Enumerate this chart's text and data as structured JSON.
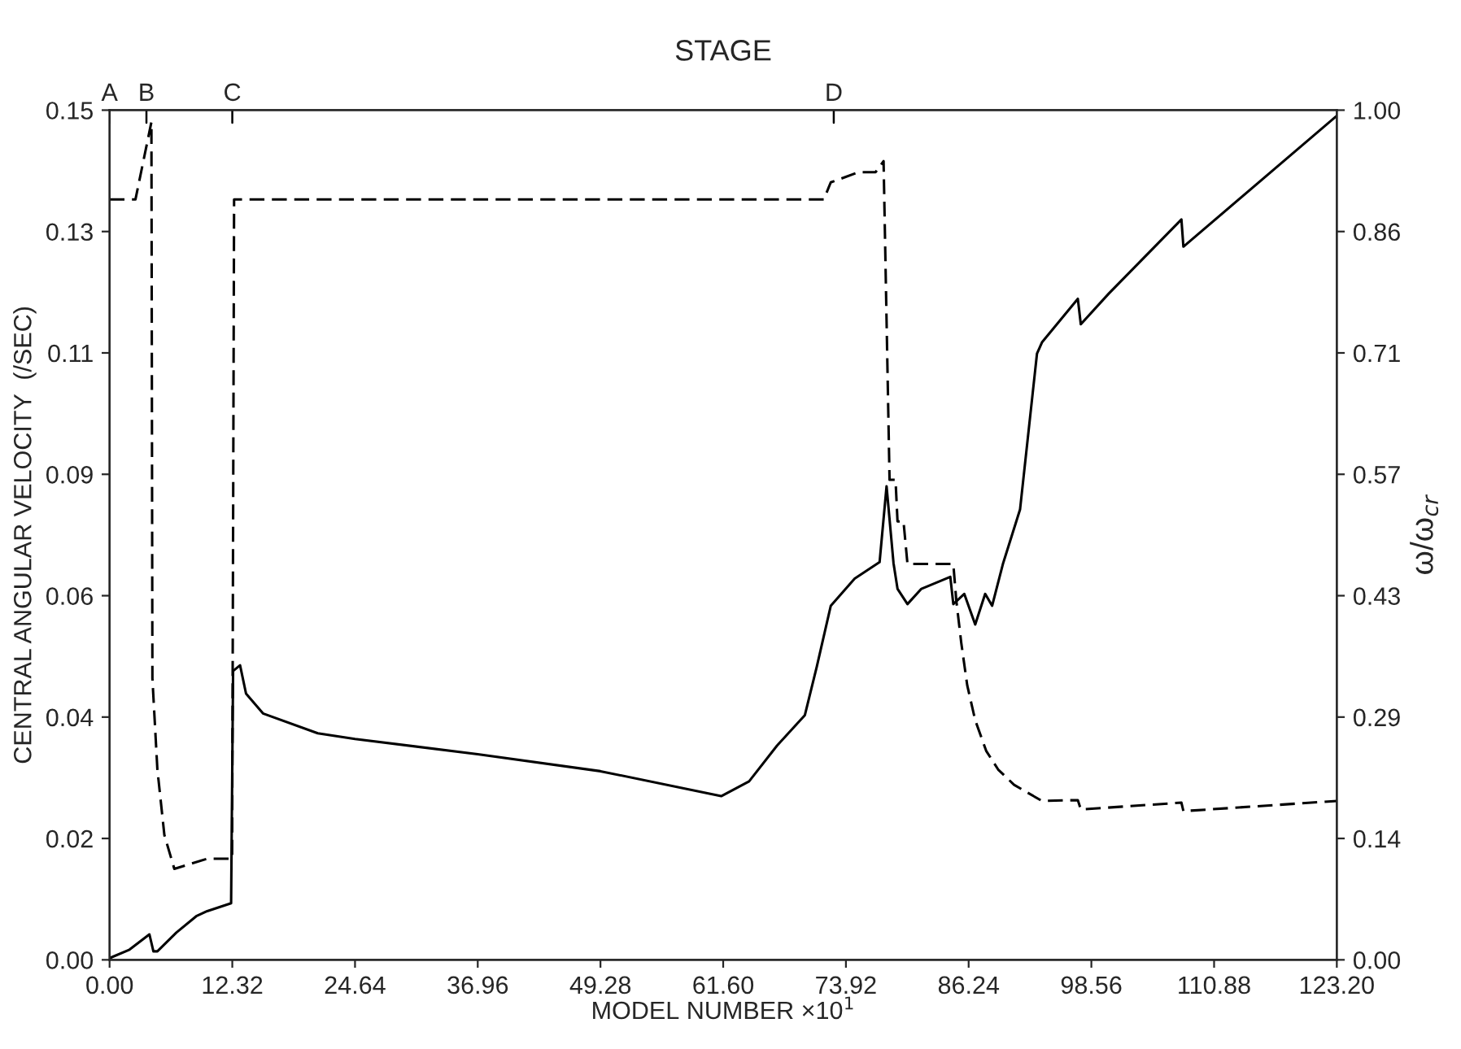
{
  "chart_data": {
    "type": "line",
    "title": "STAGE",
    "xlabel": "MODEL NUMBER ×10$^{1}$",
    "ylabel": "CENTRAL ANGULAR VELOCITY  (/SEC)",
    "y2label": "ω/ω$_{cr}$",
    "xlim": [
      0,
      123.2
    ],
    "xticks": [
      {
        "value": 0,
        "label": "0.00"
      },
      {
        "value": 12.32,
        "label": "12.32"
      },
      {
        "value": 24.64,
        "label": "24.64"
      },
      {
        "value": 36.96,
        "label": "36.96"
      },
      {
        "value": 49.28,
        "label": "49.28"
      },
      {
        "value": 61.6,
        "label": "61.60"
      },
      {
        "value": 73.92,
        "label": "73.92"
      },
      {
        "value": 86.24,
        "label": "86.24"
      },
      {
        "value": 98.56,
        "label": "98.56"
      },
      {
        "value": 110.88,
        "label": "110.88"
      },
      {
        "value": 123.2,
        "label": "123.20"
      }
    ],
    "ref_lines": [
      {
        "axis": "x",
        "value": 0,
        "label": "A"
      },
      {
        "axis": "x",
        "value": 3.7,
        "label": "B"
      },
      {
        "axis": "x",
        "value": 12.32,
        "label": "C"
      },
      {
        "axis": "x",
        "value": 72.7,
        "label": "D"
      }
    ],
    "ylim": [
      0,
      0.15
    ],
    "yticks": [
      {
        "value": 0,
        "label": "0.00"
      },
      {
        "value": 0.0214286,
        "label": "0.02"
      },
      {
        "value": 0.0428571,
        "label": "0.04"
      },
      {
        "value": 0.0642857,
        "label": "0.06"
      },
      {
        "value": 0.0857143,
        "label": "0.09"
      },
      {
        "value": 0.1071429,
        "label": "0.11"
      },
      {
        "value": 0.1285714,
        "label": "0.13"
      },
      {
        "value": 0.15,
        "label": "0.15"
      }
    ],
    "y2lim": [
      0,
      1
    ],
    "y2ticks": [
      {
        "value": 0,
        "label": "0.00"
      },
      {
        "value": 0.142857,
        "label": "0.14"
      },
      {
        "value": 0.285714,
        "label": "0.29"
      },
      {
        "value": 0.428571,
        "label": "0.43"
      },
      {
        "value": 0.571429,
        "label": "0.57"
      },
      {
        "value": 0.714286,
        "label": "0.71"
      },
      {
        "value": 0.857143,
        "label": "0.86"
      },
      {
        "value": 1,
        "label": "1.00"
      }
    ],
    "grid": false,
    "legend": false,
    "series": [
      {
        "color": "#000000",
        "line_style": "solid",
        "x": [
          0,
          2.0,
          4.0,
          4.4,
          4.8,
          6.7,
          8.7,
          9.8,
          12.2,
          12.4,
          13.1,
          13.7,
          15.4,
          20.9,
          24.64,
          36.96,
          49.28,
          61.4,
          64.2,
          67.0,
          69.8,
          71.0,
          72.4,
          74.8,
          77.3,
          78.0,
          78.7,
          79.1,
          80.1,
          81.5,
          84.4,
          84.7,
          85.8,
          86.9,
          87.9,
          88.6,
          89.7,
          91.4,
          93.1,
          93.6,
          97.2,
          97.5,
          100.3,
          107.6,
          107.8,
          123.2
        ],
        "values": [
          0.0003,
          0.0018,
          0.0045,
          0.0015,
          0.0015,
          0.0048,
          0.0077,
          0.0086,
          0.01,
          0.051,
          0.052,
          0.047,
          0.0435,
          0.04,
          0.039,
          0.0363,
          0.0333,
          0.0289,
          0.0315,
          0.0378,
          0.0432,
          0.0518,
          0.0625,
          0.0673,
          0.0702,
          0.0836,
          0.07,
          0.0655,
          0.0628,
          0.0655,
          0.0676,
          0.0628,
          0.0646,
          0.0592,
          0.0646,
          0.0625,
          0.07,
          0.0795,
          0.107,
          0.109,
          0.1167,
          0.1122,
          0.1176,
          0.1307,
          0.1259,
          0.149
        ]
      },
      {
        "color": "#000000",
        "line_style": "dashed",
        "axis": "y2",
        "x": [
          0,
          2.6,
          4.2,
          4.3,
          4.8,
          5.5,
          6.5,
          9.8,
          12.3,
          12.5,
          71.7,
          72.4,
          75.2,
          76.9,
          77.7,
          78.3,
          78.9,
          79.1,
          79.7,
          80.1,
          84.7,
          85.0,
          85.5,
          86.1,
          86.9,
          88.0,
          89.2,
          90.8,
          93.6,
          97.2,
          97.5,
          107.6,
          107.8,
          123.2
        ],
        "values": [
          0.895,
          0.895,
          0.986,
          0.331,
          0.224,
          0.147,
          0.107,
          0.119,
          0.119,
          0.895,
          0.895,
          0.915,
          0.927,
          0.927,
          0.94,
          0.565,
          0.565,
          0.516,
          0.516,
          0.466,
          0.466,
          0.423,
          0.373,
          0.323,
          0.282,
          0.246,
          0.224,
          0.206,
          0.187,
          0.188,
          0.177,
          0.185,
          0.175,
          0.187
        ]
      }
    ]
  }
}
